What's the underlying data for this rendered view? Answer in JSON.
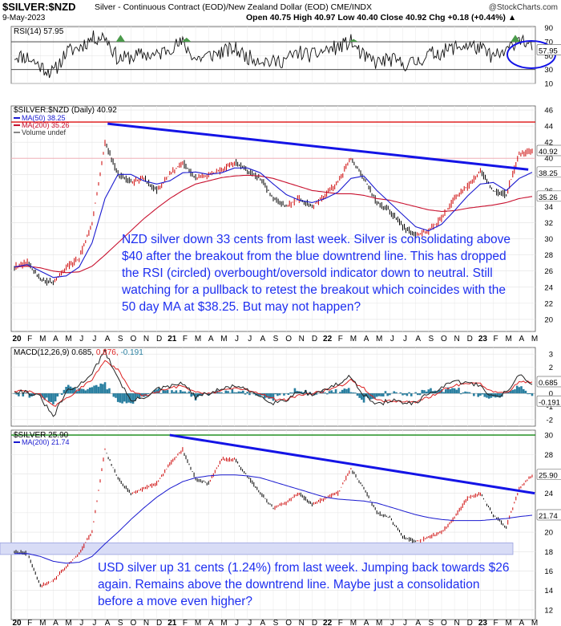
{
  "header": {
    "symbol": "$SILVER:$NZD",
    "description": "Silver - Continuous Contract (EOD)/New Zealand Dollar (EOD) CME/INDX",
    "site": "@StockCharts.com",
    "date": "9-May-2023",
    "ohlc": "Open 40.75  High 40.97  Low 40.40  Close 40.92  Chg +0.18 (+0.44%) ▲"
  },
  "x_axis": {
    "labels": [
      "20",
      "F",
      "M",
      "A",
      "M",
      "J",
      "J",
      "A",
      "S",
      "O",
      "N",
      "D",
      "21",
      "F",
      "M",
      "A",
      "M",
      "J",
      "J",
      "A",
      "S",
      "O",
      "N",
      "D",
      "22",
      "F",
      "M",
      "A",
      "M",
      "J",
      "J",
      "A",
      "S",
      "O",
      "N",
      "D",
      "23",
      "F",
      "M",
      "A",
      "M"
    ]
  },
  "colors": {
    "price": "#000000",
    "up_candle": "#cc0000",
    "ma50": "#1a1ad0",
    "ma200": "#c8102e",
    "trendline": "#1414e6",
    "resistance_red": "#dd1111",
    "resistance_green": "#118811",
    "annotation": "#1e2ff0",
    "macd_line": "#222222",
    "macd_signal": "#dd2222",
    "histogram": "#2a7fa0",
    "support_band": "#d8dcf6"
  },
  "chart_data": [
    {
      "type": "line",
      "panel": "rsi",
      "title": "RSI(14) 57.95",
      "value": 57.95,
      "yticks": [
        10,
        30,
        50,
        70,
        90
      ],
      "ylim": [
        10,
        92
      ],
      "levels": [
        30,
        70
      ],
      "tag": "57.95",
      "annotation": "overbought reading circled"
    },
    {
      "type": "line",
      "panel": "nzd",
      "title": "$SILVER:$NZD (Daily) 40.92",
      "legend": [
        "MA(50) 38.25",
        "MA(200) 35.26",
        "Volume undef"
      ],
      "yticks": [
        20,
        22,
        24,
        26,
        28,
        30,
        32,
        34,
        36,
        38,
        40,
        42,
        44,
        46
      ],
      "ylim": [
        18.5,
        46.5
      ],
      "last_close": 40.92,
      "ma50": 38.25,
      "ma200": 35.26,
      "resistance": 44.5,
      "support": 40.0,
      "trendline": [
        [
          "2020-08",
          44.3
        ],
        [
          "2023-05",
          38.25
        ]
      ],
      "x": [
        "2020-01",
        "2020-02",
        "2020-03",
        "2020-04",
        "2020-05",
        "2020-06",
        "2020-07",
        "2020-08",
        "2020-09",
        "2020-10",
        "2020-11",
        "2020-12",
        "2021-01",
        "2021-02",
        "2021-03",
        "2021-04",
        "2021-05",
        "2021-06",
        "2021-07",
        "2021-08",
        "2021-09",
        "2021-10",
        "2021-11",
        "2021-12",
        "2022-01",
        "2022-02",
        "2022-03",
        "2022-04",
        "2022-05",
        "2022-06",
        "2022-07",
        "2022-08",
        "2022-09",
        "2022-10",
        "2022-11",
        "2022-12",
        "2023-01",
        "2023-02",
        "2023-03",
        "2023-04",
        "2023-05"
      ],
      "series": [
        {
          "values": [
            26.5,
            27.0,
            25.0,
            24.5,
            26.5,
            27.5,
            32.0,
            42.0,
            38.0,
            37.0,
            37.5,
            36.0,
            38.0,
            39.5,
            37.5,
            38.0,
            38.5,
            39.5,
            38.5,
            37.5,
            35.0,
            34.0,
            35.0,
            34.0,
            35.5,
            37.0,
            40.0,
            37.5,
            34.5,
            33.5,
            31.5,
            30.5,
            31.0,
            32.5,
            35.0,
            36.5,
            38.5,
            36.0,
            35.5,
            40.5,
            40.92
          ]
        },
        {
          "name": "MA(50) 38.25",
          "values": [
            26.5,
            26.8,
            26.0,
            25.2,
            25.4,
            26.5,
            29.5,
            35.0,
            38.0,
            38.0,
            37.2,
            36.8,
            37.2,
            38.2,
            38.3,
            38.0,
            38.2,
            38.8,
            38.8,
            38.2,
            36.8,
            35.5,
            34.8,
            34.5,
            35.0,
            35.8,
            37.5,
            37.8,
            36.0,
            34.5,
            33.0,
            31.5,
            31.0,
            31.8,
            33.5,
            35.3,
            36.8,
            37.0,
            36.0,
            37.5,
            38.25
          ]
        },
        {
          "name": "MA(200) 35.26",
          "values": [
            26.5,
            26.6,
            26.4,
            26.0,
            25.8,
            25.9,
            26.6,
            28.0,
            29.5,
            31.0,
            32.5,
            33.8,
            35.0,
            36.0,
            36.8,
            37.2,
            37.6,
            37.8,
            37.9,
            37.8,
            37.5,
            37.0,
            36.5,
            36.0,
            35.8,
            35.6,
            35.6,
            35.4,
            35.0,
            34.8,
            34.4,
            34.0,
            33.6,
            33.4,
            33.5,
            33.8,
            34.0,
            34.2,
            34.5,
            35.0,
            35.26
          ]
        }
      ]
    },
    {
      "type": "line",
      "panel": "macd",
      "title": "MACD(12,26,9) 0.685, 0.876, -0.191",
      "legend": [
        "0.685",
        "0.876",
        "-0.191"
      ],
      "yticks": [
        -2,
        -1,
        0,
        1,
        2,
        3
      ],
      "ylim": [
        -2.5,
        3.5
      ],
      "tags": [
        "0.685",
        "-0.191"
      ],
      "x": [
        "2020-01",
        "2020-02",
        "2020-03",
        "2020-04",
        "2020-05",
        "2020-06",
        "2020-07",
        "2020-08",
        "2020-09",
        "2020-10",
        "2020-11",
        "2020-12",
        "2021-01",
        "2021-02",
        "2021-03",
        "2021-04",
        "2021-05",
        "2021-06",
        "2021-07",
        "2021-08",
        "2021-09",
        "2021-10",
        "2021-11",
        "2021-12",
        "2022-01",
        "2022-02",
        "2022-03",
        "2022-04",
        "2022-05",
        "2022-06",
        "2022-07",
        "2022-08",
        "2022-09",
        "2022-10",
        "2022-11",
        "2022-12",
        "2023-01",
        "2023-02",
        "2023-03",
        "2023-04",
        "2023-05"
      ],
      "series": [
        {
          "values": [
            0.2,
            0.1,
            -0.3,
            -1.8,
            0.1,
            0.6,
            1.6,
            3.2,
            1.2,
            -0.6,
            -0.3,
            0.3,
            0.5,
            0.8,
            -0.3,
            0.0,
            0.3,
            0.6,
            0.2,
            -0.2,
            -0.7,
            -0.5,
            0.2,
            -0.1,
            0.3,
            0.7,
            1.3,
            -0.1,
            -0.9,
            -0.5,
            -0.7,
            -0.8,
            0.0,
            0.4,
            0.9,
            0.8,
            0.6,
            -0.3,
            0.1,
            1.4,
            0.685
          ]
        },
        {
          "values": [
            0.2,
            0.15,
            -0.1,
            -1.0,
            -0.4,
            0.3,
            1.1,
            2.5,
            1.8,
            0.2,
            -0.2,
            0.1,
            0.4,
            0.6,
            0.1,
            0.0,
            0.2,
            0.4,
            0.3,
            0.0,
            -0.4,
            -0.5,
            -0.1,
            0.0,
            0.2,
            0.5,
            1.0,
            0.4,
            -0.5,
            -0.6,
            -0.6,
            -0.7,
            -0.3,
            0.2,
            0.6,
            0.8,
            0.7,
            0.1,
            0.0,
            0.9,
            0.876
          ]
        }
      ]
    },
    {
      "type": "line",
      "panel": "usd",
      "title": "$SILVER 25.90",
      "legend": [
        "MA(200) 21.74"
      ],
      "yticks": [
        12,
        14,
        16,
        18,
        20,
        22,
        24,
        26,
        28,
        30
      ],
      "ylim": [
        11,
        30.5
      ],
      "last_close": 25.9,
      "ma200": 21.74,
      "resistance": 30.0,
      "support_band": [
        17.7,
        18.9
      ],
      "trendline": [
        [
          "2021-01",
          30.0
        ],
        [
          "2023-05",
          24.0
        ]
      ],
      "x": [
        "2020-01",
        "2020-02",
        "2020-03",
        "2020-04",
        "2020-05",
        "2020-06",
        "2020-07",
        "2020-08",
        "2020-09",
        "2020-10",
        "2020-11",
        "2020-12",
        "2021-01",
        "2021-02",
        "2021-03",
        "2021-04",
        "2021-05",
        "2021-06",
        "2021-07",
        "2021-08",
        "2021-09",
        "2021-10",
        "2021-11",
        "2021-12",
        "2022-01",
        "2022-02",
        "2022-03",
        "2022-04",
        "2022-05",
        "2022-06",
        "2022-07",
        "2022-08",
        "2022-09",
        "2022-10",
        "2022-11",
        "2022-12",
        "2023-01",
        "2023-02",
        "2023-03",
        "2023-04",
        "2023-05"
      ],
      "series": [
        {
          "values": [
            18.0,
            17.8,
            14.5,
            15.0,
            16.5,
            17.8,
            20.0,
            28.5,
            25.5,
            24.0,
            24.5,
            25.0,
            27.0,
            28.5,
            25.5,
            25.0,
            27.5,
            27.5,
            25.8,
            24.0,
            22.5,
            23.0,
            24.0,
            22.8,
            23.5,
            24.0,
            26.5,
            24.5,
            22.0,
            21.5,
            19.5,
            19.0,
            19.5,
            20.0,
            21.5,
            23.5,
            24.0,
            21.8,
            20.5,
            24.5,
            25.9
          ]
        },
        {
          "name": "MA(200) 21.74",
          "values": [
            17.8,
            17.8,
            17.5,
            17.0,
            16.8,
            16.9,
            17.5,
            18.8,
            20.0,
            21.3,
            22.5,
            23.6,
            24.5,
            25.2,
            25.6,
            25.8,
            25.9,
            25.9,
            25.8,
            25.6,
            25.2,
            24.8,
            24.4,
            24.0,
            23.6,
            23.4,
            23.3,
            23.2,
            23.0,
            22.6,
            22.2,
            21.8,
            21.5,
            21.3,
            21.2,
            21.2,
            21.2,
            21.3,
            21.4,
            21.6,
            21.74
          ]
        }
      ]
    }
  ],
  "annotations": {
    "nzd_note": "NZD silver down 33 cents from last week. Silver is consolidating above $40 after the breakout from the blue downtrend line. This has dropped the RSI (circled) overbought/oversold indicator down to neutral. Still watching for a pullback to retest the breakout which coincides with the 50 day MA at $38.25. But may not happen?",
    "usd_note": "USD silver up 31 cents (1.24%) from last week. Jumping back towards $26 again. Remains above the downtrend line. Maybe just a consolidation before a move even higher?"
  }
}
